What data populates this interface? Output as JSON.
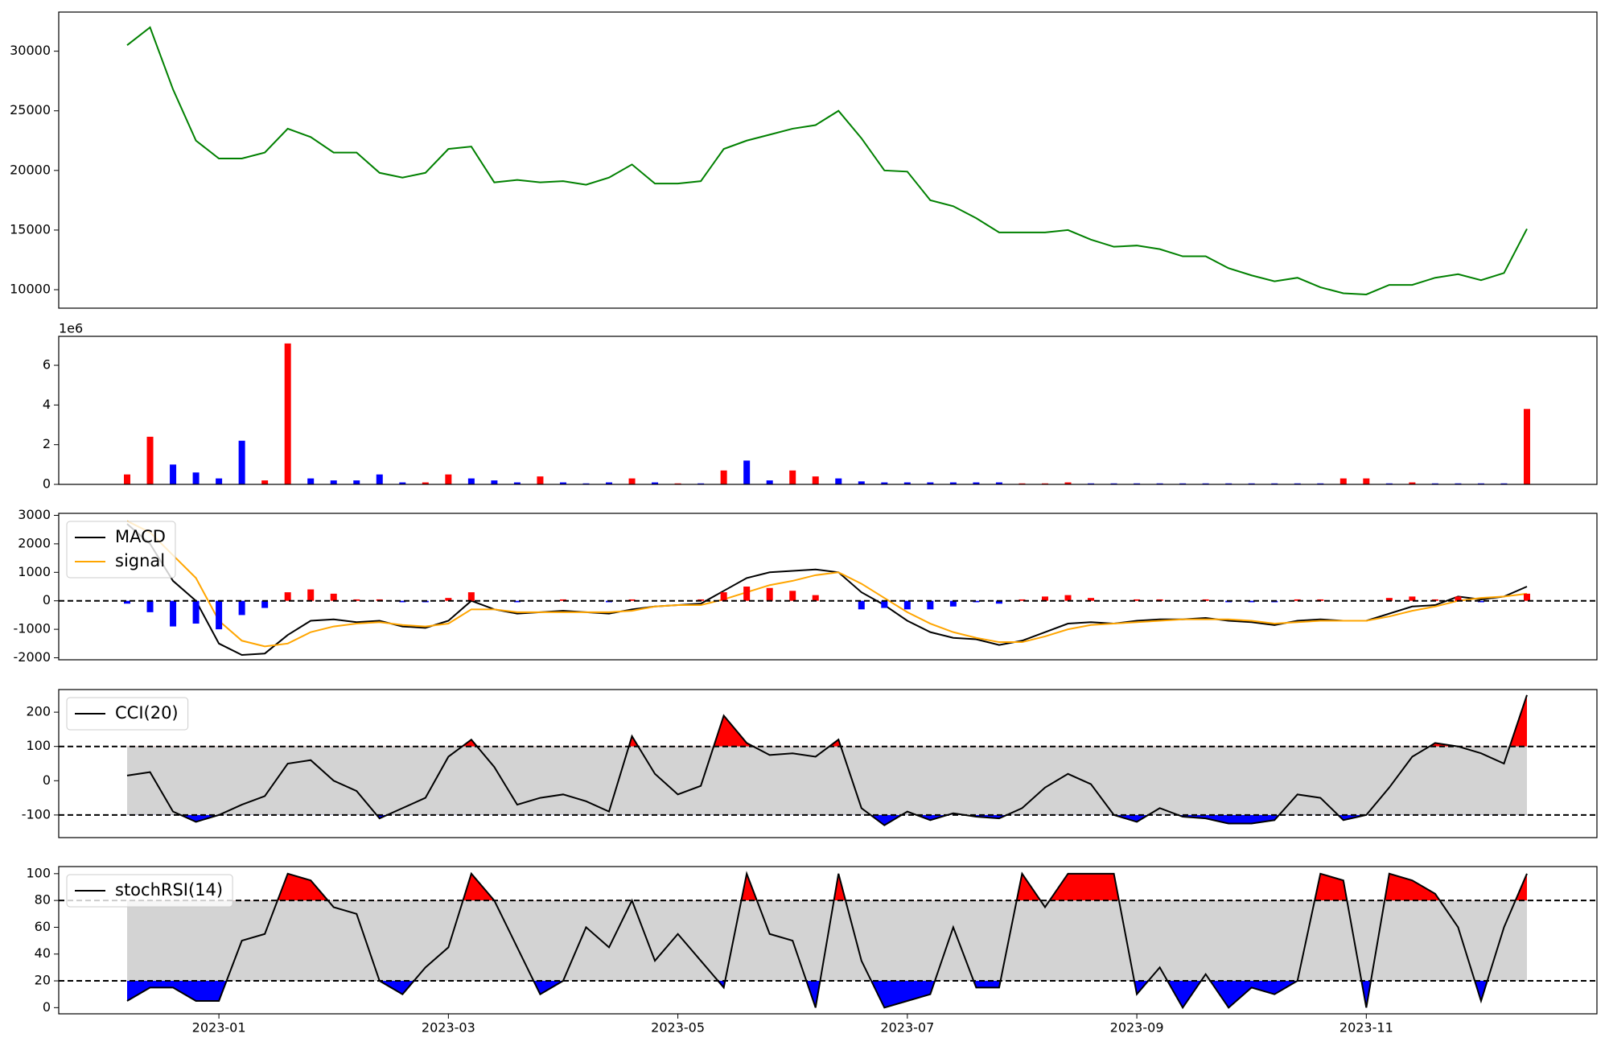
{
  "chart_data": [
    {
      "type": "line",
      "series": [
        {
          "color": "green",
          "values": [
            30500,
            32000,
            26800,
            22500,
            21000,
            21000,
            21500,
            23500,
            22800,
            21500,
            21500,
            19800,
            19400,
            19800,
            21800,
            22000,
            19000,
            19200,
            19000,
            19100,
            18800,
            19400,
            20500,
            18900,
            18900,
            19100,
            21800,
            22500,
            23000,
            23500,
            23800,
            25000,
            22700,
            20000,
            19900,
            17500,
            17000,
            16000,
            14800,
            14800,
            14800,
            15000,
            14200,
            13600,
            13700,
            13400,
            12800,
            12800,
            11800,
            11200,
            10700,
            11000,
            10200,
            9700,
            9600,
            10400,
            10400,
            11000,
            11300,
            10800,
            11400,
            15100
          ]
        }
      ],
      "ylim": [
        8450,
        33280
      ],
      "yticks": [
        10000,
        15000,
        20000,
        25000,
        30000
      ]
    },
    {
      "type": "bar",
      "offset_label": "1e6",
      "values": [
        0.5,
        2.4,
        1.0,
        0.6,
        0.3,
        2.2,
        0.2,
        7.1,
        0.3,
        0.2,
        0.2,
        0.5,
        0.1,
        0.1,
        0.5,
        0.3,
        0.2,
        0.1,
        0.4,
        0.1,
        0.05,
        0.1,
        0.3,
        0.1,
        0.05,
        0.05,
        0.7,
        1.2,
        0.2,
        0.7,
        0.4,
        0.3,
        0.15,
        0.1,
        0.1,
        0.1,
        0.1,
        0.1,
        0.1,
        0.05,
        0.05,
        0.1,
        0.05,
        0.05,
        0.05,
        0.05,
        0.05,
        0.05,
        0.05,
        0.05,
        0.05,
        0.05,
        0.05,
        0.3,
        0.3,
        0.05,
        0.1,
        0.05,
        0.05,
        0.05,
        0.05,
        3.8
      ],
      "colors": [
        "red",
        "red",
        "blue",
        "blue",
        "blue",
        "blue",
        "red",
        "red",
        "blue",
        "blue",
        "blue",
        "blue",
        "blue",
        "red",
        "red",
        "blue",
        "blue",
        "blue",
        "red",
        "blue",
        "blue",
        "blue",
        "red",
        "blue",
        "red",
        "blue",
        "red",
        "blue",
        "blue",
        "red",
        "red",
        "blue",
        "blue",
        "blue",
        "blue",
        "blue",
        "blue",
        "blue",
        "blue",
        "red",
        "red",
        "red",
        "blue",
        "blue",
        "blue",
        "blue",
        "blue",
        "blue",
        "blue",
        "blue",
        "blue",
        "blue",
        "blue",
        "red",
        "red",
        "blue",
        "red",
        "blue",
        "blue",
        "blue",
        "blue",
        "red"
      ],
      "ylim": [
        0,
        7.46
      ],
      "yticks": [
        0,
        2,
        4,
        6
      ]
    },
    {
      "type": "line",
      "legend": "upper left",
      "hlines": [
        0
      ],
      "series": [
        {
          "name": "MACD",
          "color": "black",
          "values": [
            2700,
            2000,
            700,
            0,
            -1500,
            -1900,
            -1850,
            -1200,
            -700,
            -650,
            -750,
            -700,
            -900,
            -950,
            -700,
            0,
            -300,
            -450,
            -400,
            -350,
            -400,
            -450,
            -300,
            -200,
            -150,
            -100,
            350,
            800,
            1000,
            1050,
            1100,
            1000,
            300,
            -150,
            -700,
            -1100,
            -1300,
            -1350,
            -1550,
            -1400,
            -1100,
            -800,
            -750,
            -800,
            -700,
            -650,
            -650,
            -600,
            -700,
            -750,
            -850,
            -700,
            -650,
            -700,
            -700,
            -450,
            -200,
            -150,
            150,
            50,
            150,
            500
          ]
        },
        {
          "name": "signal",
          "color": "orange",
          "values": [
            2800,
            2400,
            1600,
            800,
            -700,
            -1400,
            -1600,
            -1500,
            -1100,
            -900,
            -800,
            -750,
            -850,
            -900,
            -800,
            -300,
            -300,
            -400,
            -400,
            -400,
            -400,
            -400,
            -350,
            -200,
            -150,
            -150,
            50,
            300,
            550,
            700,
            900,
            1000,
            600,
            100,
            -400,
            -800,
            -1100,
            -1300,
            -1450,
            -1450,
            -1250,
            -1000,
            -850,
            -800,
            -750,
            -700,
            -650,
            -650,
            -650,
            -700,
            -800,
            -750,
            -700,
            -700,
            -700,
            -550,
            -350,
            -200,
            0,
            100,
            150,
            250
          ]
        },
        {
          "kind": "bar",
          "pos_color": "red",
          "neg_color": "blue",
          "values": [
            -100,
            -400,
            -900,
            -800,
            -1000,
            -500,
            -250,
            300,
            400,
            250,
            50,
            50,
            -50,
            -50,
            100,
            300,
            0,
            -50,
            0,
            50,
            0,
            -50,
            50,
            0,
            0,
            50,
            300,
            500,
            450,
            350,
            200,
            0,
            -300,
            -250,
            -300,
            -300,
            -200,
            -50,
            -100,
            50,
            150,
            200,
            100,
            0,
            50,
            50,
            0,
            50,
            -50,
            -50,
            -50,
            50,
            50,
            0,
            0,
            100,
            150,
            50,
            150,
            -50,
            0,
            250
          ]
        }
      ],
      "ylim": [
        -2070,
        3070
      ],
      "yticks": [
        -2000,
        -1000,
        0,
        1000,
        2000,
        3000
      ]
    },
    {
      "type": "line",
      "legend": "upper left",
      "band": [
        -100,
        100
      ],
      "band_color": "lightgray",
      "above_color": "red",
      "below_color": "blue",
      "series": [
        {
          "name": "CCI(20)",
          "color": "black",
          "values": [
            15,
            25,
            -90,
            -120,
            -100,
            -70,
            -45,
            50,
            60,
            0,
            -30,
            -110,
            -80,
            -50,
            70,
            120,
            40,
            -70,
            -50,
            -40,
            -60,
            -90,
            130,
            20,
            -40,
            -15,
            190,
            110,
            75,
            80,
            70,
            120,
            -80,
            -130,
            -90,
            -115,
            -95,
            -105,
            -110,
            -80,
            -20,
            20,
            -10,
            -100,
            -120,
            -80,
            -105,
            -110,
            -125,
            -125,
            -115,
            -40,
            -50,
            -115,
            -100,
            -20,
            70,
            110,
            100,
            80,
            50,
            250
          ]
        }
      ],
      "ylim": [
        -166,
        266
      ],
      "yticks": [
        -100,
        0,
        100,
        200
      ]
    },
    {
      "type": "line",
      "legend": "upper left",
      "band": [
        20,
        80
      ],
      "band_color": "lightgray",
      "above_color": "red",
      "below_color": "blue",
      "series": [
        {
          "name": "stochRSI(14)",
          "color": "black",
          "values": [
            5,
            15,
            15,
            5,
            5,
            50,
            55,
            100,
            95,
            75,
            70,
            20,
            10,
            30,
            45,
            100,
            80,
            45,
            10,
            20,
            60,
            45,
            80,
            35,
            55,
            35,
            15,
            100,
            55,
            50,
            0,
            100,
            35,
            0,
            5,
            10,
            60,
            15,
            15,
            100,
            75,
            100,
            100,
            100,
            10,
            30,
            0,
            25,
            0,
            15,
            10,
            20,
            100,
            95,
            0,
            100,
            95,
            85,
            60,
            5,
            60,
            100
          ]
        }
      ],
      "ylim": [
        -4.6,
        105.3
      ],
      "yticks": [
        0,
        20,
        40,
        60,
        80,
        100
      ],
      "categories": [
        null,
        null,
        null,
        null,
        "2023-01",
        null,
        null,
        null,
        null,
        null,
        null,
        null,
        null,
        null,
        "2023-03",
        null,
        null,
        null,
        null,
        null,
        null,
        null,
        null,
        null,
        "2023-05",
        null,
        null,
        null,
        null,
        null,
        null,
        null,
        null,
        null,
        "2023-07",
        null,
        null,
        null,
        null,
        null,
        null,
        null,
        null,
        null,
        "2023-09",
        null,
        null,
        null,
        null,
        null,
        null,
        null,
        null,
        null,
        "2023-11",
        null,
        null,
        null,
        null,
        null,
        null,
        null
      ]
    }
  ]
}
